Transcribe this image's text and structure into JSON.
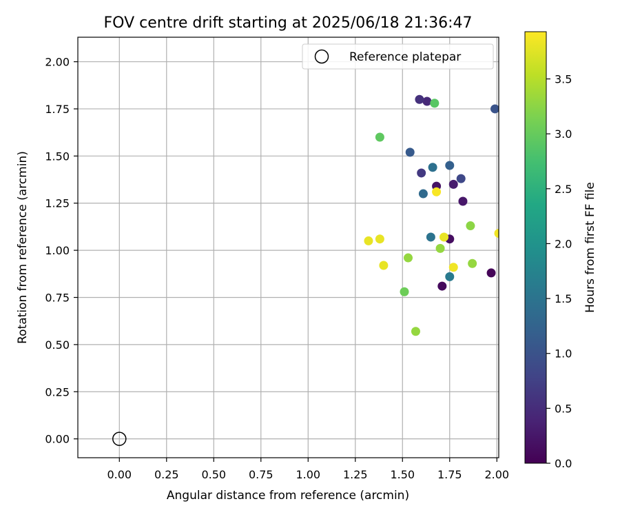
{
  "chart_data": {
    "type": "scatter",
    "title": "FOV centre drift starting at 2025/06/18 21:36:47",
    "xlabel": "Angular distance from reference (arcmin)",
    "ylabel": "Rotation from reference (arcmin)",
    "xlim": [
      -0.22,
      2.01
    ],
    "ylim": [
      -0.1,
      2.13
    ],
    "xticks": [
      0.0,
      0.25,
      0.5,
      0.75,
      1.0,
      1.25,
      1.5,
      1.75,
      2.0
    ],
    "xtick_labels": [
      "0.00",
      "0.25",
      "0.50",
      "0.75",
      "1.00",
      "1.25",
      "1.50",
      "1.75",
      "2.00"
    ],
    "yticks": [
      0.0,
      0.25,
      0.5,
      0.75,
      1.0,
      1.25,
      1.5,
      1.75,
      2.0
    ],
    "ytick_labels": [
      "0.00",
      "0.25",
      "0.50",
      "0.75",
      "1.00",
      "1.25",
      "1.50",
      "1.75",
      "2.00"
    ],
    "grid": true,
    "legend": {
      "position": "top-right",
      "entries": [
        "Reference platepar"
      ]
    },
    "reference_point": {
      "x": 0.0,
      "y": 0.0
    },
    "colorbar": {
      "label": "Hours from first FF file",
      "colormap": "viridis",
      "range": [
        0.0,
        3.93
      ],
      "ticks": [
        0.0,
        0.5,
        1.0,
        1.5,
        2.0,
        2.5,
        3.0,
        3.5
      ],
      "tick_labels": [
        "0.0",
        "0.5",
        "1.0",
        "1.5",
        "2.0",
        "2.5",
        "3.0",
        "3.5"
      ]
    },
    "points": [
      {
        "x": 1.97,
        "y": 0.88,
        "hours": 0.05
      },
      {
        "x": 1.71,
        "y": 0.81,
        "hours": 0.1
      },
      {
        "x": 1.75,
        "y": 1.06,
        "hours": 0.15
      },
      {
        "x": 1.82,
        "y": 1.26,
        "hours": 0.25
      },
      {
        "x": 1.68,
        "y": 1.34,
        "hours": 0.2
      },
      {
        "x": 1.77,
        "y": 1.35,
        "hours": 0.3
      },
      {
        "x": 1.63,
        "y": 1.79,
        "hours": 0.45
      },
      {
        "x": 1.59,
        "y": 1.8,
        "hours": 0.55
      },
      {
        "x": 1.6,
        "y": 1.41,
        "hours": 0.65
      },
      {
        "x": 1.81,
        "y": 1.38,
        "hours": 0.85
      },
      {
        "x": 1.99,
        "y": 1.75,
        "hours": 1.0
      },
      {
        "x": 1.54,
        "y": 1.52,
        "hours": 1.1
      },
      {
        "x": 1.75,
        "y": 1.45,
        "hours": 1.2
      },
      {
        "x": 1.61,
        "y": 1.3,
        "hours": 1.35
      },
      {
        "x": 1.66,
        "y": 1.44,
        "hours": 1.45
      },
      {
        "x": 1.65,
        "y": 1.07,
        "hours": 1.5
      },
      {
        "x": 1.75,
        "y": 0.86,
        "hours": 1.6
      },
      {
        "x": 1.67,
        "y": 1.78,
        "hours": 2.9
      },
      {
        "x": 1.38,
        "y": 1.6,
        "hours": 2.95
      },
      {
        "x": 1.51,
        "y": 0.78,
        "hours": 3.05
      },
      {
        "x": 1.86,
        "y": 1.13,
        "hours": 3.25
      },
      {
        "x": 1.53,
        "y": 0.96,
        "hours": 3.3
      },
      {
        "x": 1.7,
        "y": 1.01,
        "hours": 3.3
      },
      {
        "x": 1.57,
        "y": 0.57,
        "hours": 3.3
      },
      {
        "x": 1.87,
        "y": 0.93,
        "hours": 3.3
      },
      {
        "x": 1.32,
        "y": 1.05,
        "hours": 3.8
      },
      {
        "x": 1.38,
        "y": 1.06,
        "hours": 3.8
      },
      {
        "x": 1.4,
        "y": 0.92,
        "hours": 3.8
      },
      {
        "x": 1.72,
        "y": 1.07,
        "hours": 3.8
      },
      {
        "x": 1.77,
        "y": 0.91,
        "hours": 3.85
      },
      {
        "x": 1.68,
        "y": 1.31,
        "hours": 3.9
      },
      {
        "x": 2.01,
        "y": 1.09,
        "hours": 3.85
      }
    ]
  }
}
